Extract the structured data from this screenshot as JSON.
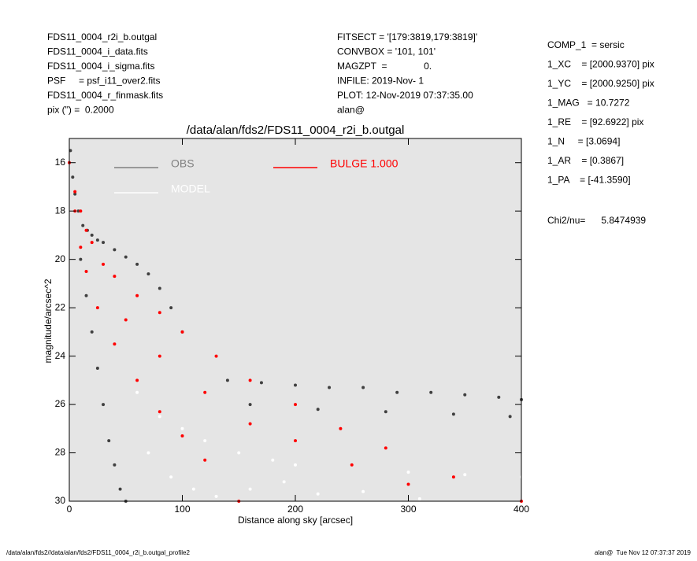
{
  "header_left": [
    "FDS11_0004_r2i_b.outgal",
    "FDS11_0004_i_data.fits",
    "FDS11_0004_i_sigma.fits",
    "PSF     = psf_i11_over2.fits",
    "FDS11_0004_r_finmask.fits",
    "pix (\") =  0.2000"
  ],
  "header_middle": [
    "FITSECT = '[179:3819,179:3819]'",
    "CONVBOX = '101, 101'",
    "MAGZPT  =              0.",
    "INFILE: 2019-Nov- 1",
    "PLOT: 12-Nov-2019 07:37:35.00",
    "alan@"
  ],
  "header_right": [
    "COMP_1  = sersic",
    "1_XC    = [2000.9370] pix",
    "1_YC    = [2000.9250] pix",
    "1_MAG   = 10.7272",
    "1_RE    = [92.6922] pix",
    "1_N     = [3.0694]",
    "1_AR    = [0.3867]",
    "1_PA    = [-41.3590]"
  ],
  "chi2": "Chi2/nu=      5.8474939",
  "footer_left": "/data/alan/fds2//data/alan/fds2/FDS11_0004_r2i_b.outgal_profile2",
  "footer_right": "alan@  Tue Nov 12 07:37:37 2019",
  "chart_data": {
    "type": "scatter",
    "title": "/data/alan/fds2/FDS11_0004_r2i_b.outgal",
    "x_label": "Distance along sky [arcsec]",
    "y_label": "magnitude/arcsec^2",
    "xlim": [
      0,
      400
    ],
    "ylim": [
      30,
      15
    ],
    "xticks": [
      0,
      100,
      200,
      300,
      400
    ],
    "yticks": [
      16,
      18,
      20,
      22,
      24,
      26,
      28,
      30
    ],
    "series": [
      {
        "name": "OBS",
        "color": "#404040",
        "legend_color": "#808080",
        "x": [
          1,
          3,
          5,
          8,
          12,
          16,
          20,
          25,
          30,
          40,
          50,
          60,
          70,
          80,
          90,
          100,
          10,
          15,
          20,
          25,
          30,
          35,
          40,
          45,
          50,
          140,
          170,
          200,
          230,
          260,
          290,
          320,
          350,
          380,
          400,
          160,
          220,
          280,
          340,
          390
        ],
        "values": [
          15.5,
          16.6,
          17.3,
          18,
          18.6,
          18.8,
          19,
          19.2,
          19.3,
          19.6,
          19.9,
          20.2,
          20.6,
          21.2,
          22,
          23,
          20,
          21.5,
          23,
          24.5,
          26,
          27.5,
          28.5,
          29.5,
          30,
          25,
          25.1,
          25.2,
          25.3,
          25.3,
          25.5,
          25.5,
          25.6,
          25.7,
          25.8,
          26,
          26.2,
          26.3,
          26.4,
          26.5
        ]
      },
      {
        "name": "MODEL",
        "color": "#ffffff",
        "legend_color": "#ffffff",
        "x": [
          60,
          80,
          100,
          120,
          150,
          180,
          200,
          250,
          300,
          350,
          400,
          70,
          90,
          110,
          130,
          160,
          190,
          220,
          260,
          310
        ],
        "values": [
          25.5,
          26.5,
          27,
          27.5,
          28,
          28.3,
          28.5,
          28.5,
          28.8,
          28.9,
          29,
          28,
          29,
          29.5,
          29.8,
          29.5,
          29.2,
          29.7,
          29.6,
          29.9
        ]
      },
      {
        "name": "BULGE 1.000",
        "color": "#ff0000",
        "legend_color": "#ff0000",
        "x": [
          0,
          5,
          10,
          15,
          20,
          30,
          40,
          60,
          80,
          100,
          130,
          160,
          200,
          240,
          280,
          340,
          400,
          5,
          10,
          15,
          25,
          40,
          60,
          80,
          100,
          120,
          150,
          50,
          80,
          120,
          160,
          200,
          250,
          300
        ],
        "values": [
          16,
          17.2,
          18,
          18.8,
          19.3,
          20.2,
          20.7,
          21.5,
          22.2,
          23,
          24,
          25,
          26,
          27,
          27.8,
          29,
          30,
          18,
          19.5,
          20.5,
          22,
          23.5,
          25,
          26.3,
          27.3,
          28.3,
          30,
          22.5,
          24,
          25.5,
          26.8,
          27.5,
          28.5,
          29.3
        ]
      }
    ]
  }
}
